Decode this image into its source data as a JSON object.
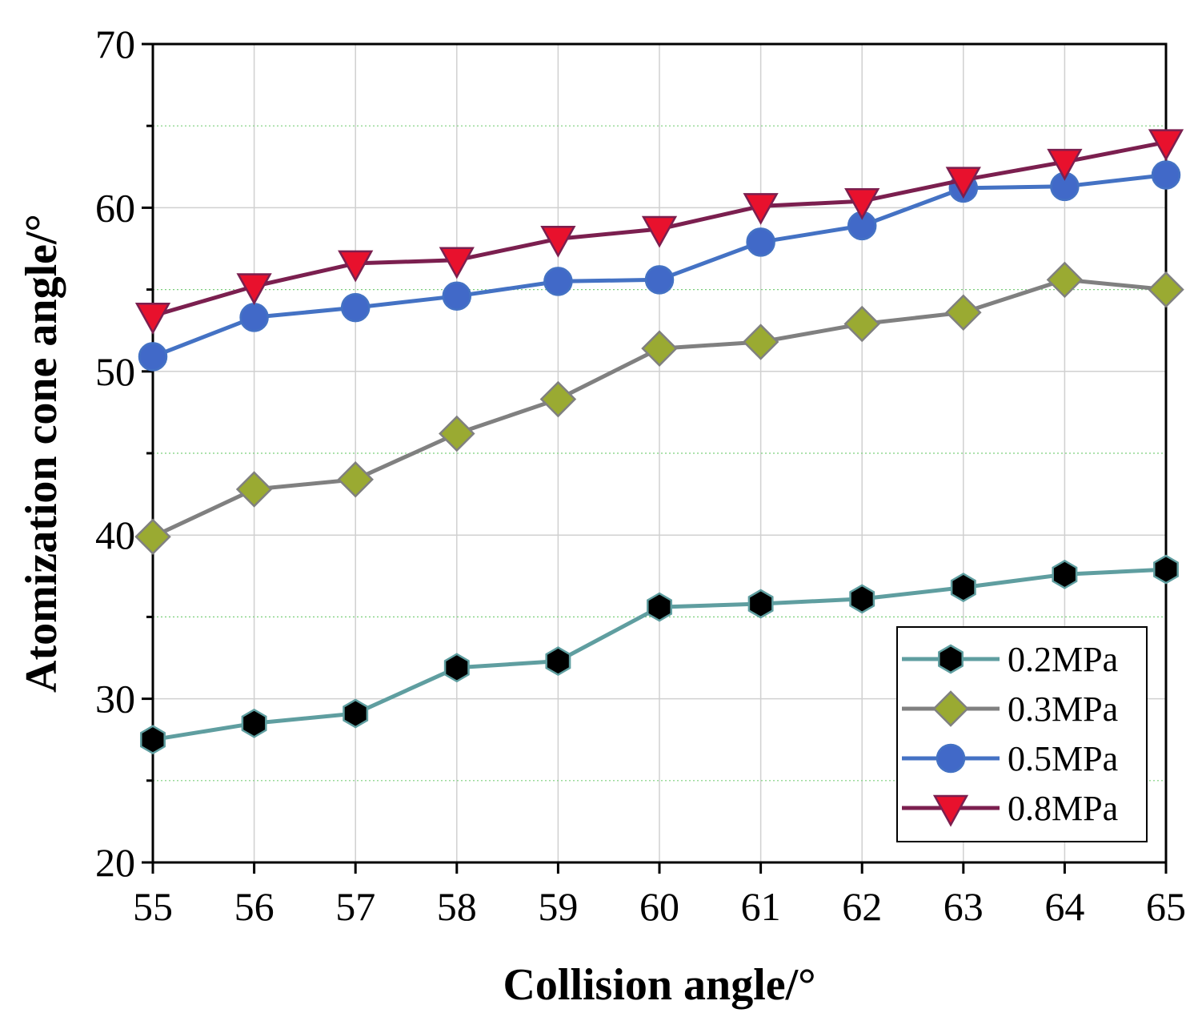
{
  "chart_data": {
    "type": "line",
    "title": "",
    "xlabel": "Collision angle/°",
    "ylabel": "Atomization cone angle/°",
    "x": [
      55,
      56,
      57,
      58,
      59,
      60,
      61,
      62,
      63,
      64,
      65
    ],
    "xlim": [
      55,
      65
    ],
    "ylim": [
      20,
      70
    ],
    "xticks": [
      "55",
      "56",
      "57",
      "58",
      "59",
      "60",
      "61",
      "62",
      "63",
      "64",
      "65"
    ],
    "yticks": [
      "20",
      "30",
      "40",
      "50",
      "60",
      "70"
    ],
    "grid": true,
    "legend_position": "bottom-right",
    "series": [
      {
        "name": "0.2MPa",
        "color": "#5f9ea0",
        "marker": "hexagon",
        "marker_fill": "#000000",
        "values": [
          27.5,
          28.5,
          29.1,
          31.9,
          32.3,
          35.6,
          35.8,
          36.1,
          36.8,
          37.6,
          37.9
        ]
      },
      {
        "name": "0.3MPa",
        "color": "#808080",
        "marker": "diamond",
        "marker_fill": "#9aaa32",
        "values": [
          39.9,
          42.8,
          43.4,
          46.2,
          48.3,
          51.4,
          51.8,
          52.9,
          53.6,
          55.6,
          55.0
        ]
      },
      {
        "name": "0.5MPa",
        "color": "#4472c4",
        "marker": "circle",
        "marker_fill": "#4169c8",
        "values": [
          50.9,
          53.3,
          53.9,
          54.6,
          55.5,
          55.6,
          57.9,
          58.9,
          61.2,
          61.3,
          62.0
        ]
      },
      {
        "name": "0.8MPa",
        "color": "#7b1f4f",
        "marker": "triangle-down",
        "marker_fill": "#e8112d",
        "values": [
          53.4,
          55.2,
          56.6,
          56.8,
          58.1,
          58.7,
          60.1,
          60.4,
          61.7,
          62.8,
          64.0
        ]
      }
    ]
  }
}
